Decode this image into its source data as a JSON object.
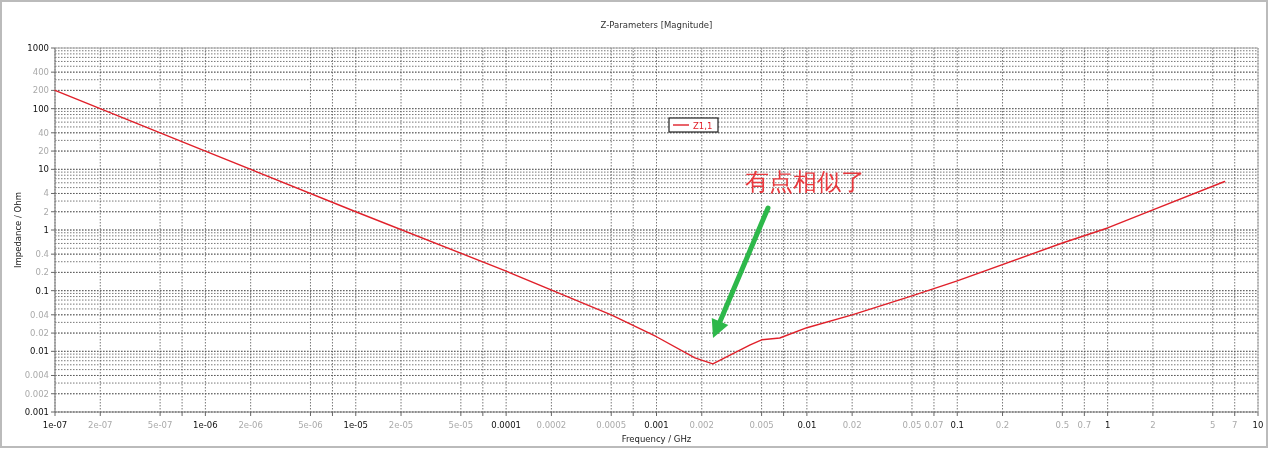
{
  "chart_data": {
    "type": "line",
    "title": "Z-Parameters [Magnitude]",
    "xlabel": "Frequency / GHz",
    "ylabel": "Impedance / Ohm",
    "log": "xy",
    "grid": true,
    "legend": "top",
    "line_style": "solid",
    "marker": "none",
    "xlim": [
      1e-07,
      10
    ],
    "ylim": [
      0.001,
      1000
    ],
    "xticks": [
      {
        "value": 1e-07,
        "label": "1e-07"
      },
      {
        "value": 2e-07,
        "label": "2e-07"
      },
      {
        "value": 5e-07,
        "label": "5e-07"
      },
      {
        "value": 7e-07,
        "label": null
      },
      {
        "value": 1e-06,
        "label": "1e-06"
      },
      {
        "value": 2e-06,
        "label": "2e-06"
      },
      {
        "value": 5e-06,
        "label": "5e-06"
      },
      {
        "value": 7e-06,
        "label": null
      },
      {
        "value": 1e-05,
        "label": "1e-05"
      },
      {
        "value": 2e-05,
        "label": "2e-05"
      },
      {
        "value": 5e-05,
        "label": "5e-05"
      },
      {
        "value": 7e-05,
        "label": null
      },
      {
        "value": 0.0001,
        "label": "0.0001"
      },
      {
        "value": 0.0002,
        "label": "0.0002"
      },
      {
        "value": 0.0005,
        "label": "0.0005"
      },
      {
        "value": 0.0007,
        "label": null
      },
      {
        "value": 0.001,
        "label": "0.001"
      },
      {
        "value": 0.002,
        "label": "0.002"
      },
      {
        "value": 0.005,
        "label": "0.005"
      },
      {
        "value": 0.007,
        "label": null
      },
      {
        "value": 0.01,
        "label": "0.01"
      },
      {
        "value": 0.02,
        "label": "0.02"
      },
      {
        "value": 0.05,
        "label": "0.05"
      },
      {
        "value": 0.07,
        "label": "0.07"
      },
      {
        "value": 0.1,
        "label": "0.1"
      },
      {
        "value": 0.2,
        "label": "0.2"
      },
      {
        "value": 0.5,
        "label": "0.5"
      },
      {
        "value": 0.7,
        "label": "0.7"
      },
      {
        "value": 1,
        "label": "1"
      },
      {
        "value": 2,
        "label": "2"
      },
      {
        "value": 5,
        "label": "5"
      },
      {
        "value": 7,
        "label": "7"
      },
      {
        "value": 10,
        "label": "10"
      }
    ],
    "yticks": [
      0.001,
      0.002,
      0.004,
      0.01,
      0.02,
      0.04,
      0.1,
      0.2,
      0.4,
      1,
      2,
      4,
      10,
      20,
      40,
      100,
      200,
      400,
      1000
    ],
    "series": [
      {
        "name": "Z1,1",
        "color": "#e0202a",
        "x": [
          1e-07,
          1e-06,
          1e-05,
          0.0001,
          0.0005,
          0.001,
          0.0018,
          0.00237,
          0.0042,
          0.005,
          0.0066,
          0.01,
          0.02,
          0.05,
          0.1,
          0.5,
          1,
          2,
          6
        ],
        "values": [
          200,
          20,
          2,
          0.21,
          0.04,
          0.0174,
          0.0078,
          0.0062,
          0.0128,
          0.0155,
          0.0166,
          0.0245,
          0.04,
          0.082,
          0.145,
          0.61,
          1.08,
          2.14,
          6.3
        ]
      }
    ],
    "annotations": [
      "有点相似了"
    ]
  }
}
